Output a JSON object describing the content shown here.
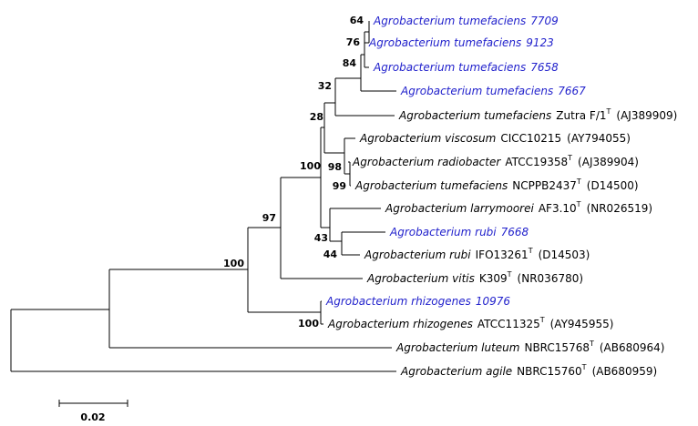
{
  "leaves": [
    {
      "name": "Agrobacterium tumefaciens",
      "strain": "7709",
      "color": "#2222cc"
    },
    {
      "name": "Agrobacterium tumefaciens",
      "strain": "9123",
      "color": "#2222cc"
    },
    {
      "name": "Agrobacterium tumefaciens",
      "strain": "7658",
      "color": "#2222cc"
    },
    {
      "name": "Agrobacterium tumefaciens",
      "strain": "7667",
      "color": "#2222cc"
    },
    {
      "name": "Agrobacterium tumefaciens",
      "strain": "Zutra F/1",
      "type_mark": "T",
      "accession": "(AJ389909)",
      "color": "#000000"
    },
    {
      "name": "Agrobacterium viscosum",
      "strain": "CICC10215",
      "accession": "(AY794055)",
      "color": "#000000"
    },
    {
      "name": "Agrobacterium radiobacter",
      "strain": "ATCC19358",
      "type_mark": "T",
      "accession": "(AJ389904)",
      "color": "#000000"
    },
    {
      "name": "Agrobacterium tumefaciens",
      "strain": "NCPPB2437",
      "type_mark": "T",
      "accession": "(D14500)",
      "color": "#000000"
    },
    {
      "name": "Agrobacterium larrymoorei",
      "strain": "AF3.10",
      "type_mark": "T",
      "accession": "(NR026519)",
      "color": "#000000"
    },
    {
      "name": "Agrobacterium rubi",
      "strain": "7668",
      "color": "#2222cc"
    },
    {
      "name": "Agrobacterium rubi",
      "strain": "IFO13261",
      "type_mark": "T",
      "accession": "(D14503)",
      "color": "#000000"
    },
    {
      "name": "Agrobacterium vitis",
      "strain": "K309",
      "type_mark": "T",
      "accession": "(NR036780)",
      "color": "#000000"
    },
    {
      "name": "Agrobacterium rhizogenes",
      "strain": "10976",
      "color": "#2222cc"
    },
    {
      "name": "Agrobacterium rhizogenes",
      "strain": "ATCC11325",
      "type_mark": "T",
      "accession": "(AY945955)",
      "color": "#000000"
    },
    {
      "name": "Agrobacterium luteum",
      "strain": "NBRC15768",
      "type_mark": "T",
      "accession": "(AB680964)",
      "color": "#000000"
    },
    {
      "name": "Agrobacterium agile",
      "strain": "NBRC15760",
      "type_mark": "T",
      "accession": "(AB680959)",
      "color": "#000000"
    }
  ],
  "bootstrap": [
    "64",
    "76",
    "84",
    "32",
    "28",
    "100",
    "98",
    "99",
    "97",
    "43",
    "44",
    "100",
    "100"
  ],
  "scale_bar": "0.02"
}
